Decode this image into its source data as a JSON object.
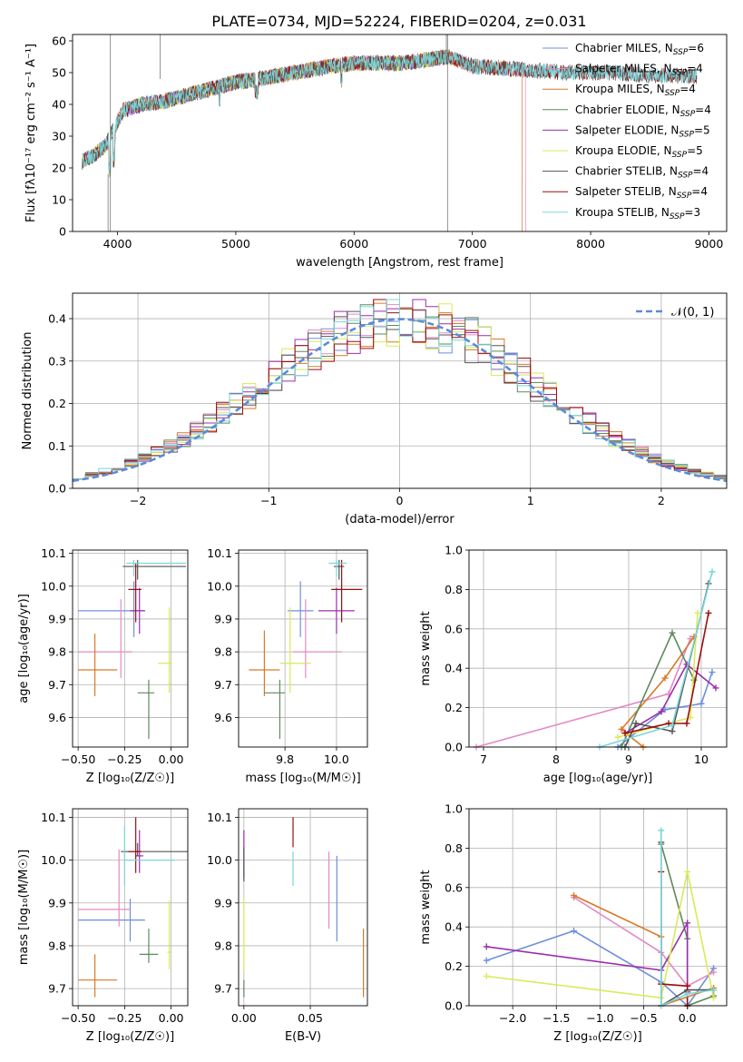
{
  "title": "PLATE=0734, MJD=52224, FIBERID=0204, z=0.031",
  "colors": [
    "#6d8fdc",
    "#e38ac4",
    "#d77a29",
    "#5e8a5b",
    "#9a2eae",
    "#d9ea56",
    "#555555",
    "#9b0e0e",
    "#7bd5d9"
  ],
  "chart_data": [
    {
      "id": "spectrum",
      "type": "line",
      "xlabel": "wavelength [Angstrom, rest frame]",
      "ylabel": "Flux [f$_\\lambda$10$^{-17}$ erg cm$^{-2}$ s$^{-1}$ A$^{-1}$]",
      "ylabel_display": "Flux [fλ10⁻¹⁷ erg cm⁻² s⁻¹ A⁻¹]",
      "xlim": [
        3620,
        9150
      ],
      "ylim": [
        0,
        62
      ],
      "xticks": [
        4000,
        5000,
        6000,
        7000,
        8000,
        9000
      ],
      "yticks": [
        0,
        10,
        20,
        30,
        40,
        50,
        60
      ],
      "legend_position": "top-right",
      "series": [
        {
          "name": "Chabrier MILES, N$_{SSP}$=6",
          "base": "Chabrier MILES, N",
          "sub": "SSP",
          "rest": "=6",
          "range": [
            3700,
            7450
          ]
        },
        {
          "name": "Salpeter MILES, N$_{SSP}$=4",
          "base": "Salpeter MILES, N",
          "sub": "SSP",
          "rest": "=4",
          "range": [
            3700,
            7450
          ]
        },
        {
          "name": "Kroupa MILES, N$_{SSP}$=4",
          "base": "Kroupa MILES, N",
          "sub": "SSP",
          "rest": "=4",
          "range": [
            3700,
            7420
          ]
        },
        {
          "name": "Chabrier ELODIE, N$_{SSP}$=4",
          "base": "Chabrier ELODIE, N",
          "sub": "SSP",
          "rest": "=4",
          "range": [
            3700,
            6800
          ]
        },
        {
          "name": "Salpeter ELODIE, N$_{SSP}$=5",
          "base": "Salpeter ELODIE, N",
          "sub": "SSP",
          "rest": "=5",
          "range": [
            3700,
            6800
          ]
        },
        {
          "name": "Kroupa ELODIE, N$_{SSP}$=5",
          "base": "Kroupa ELODIE, N",
          "sub": "SSP",
          "rest": "=5",
          "range": [
            3700,
            6800
          ]
        },
        {
          "name": "Chabrier STELIB, N$_{SSP}$=4",
          "base": "Chabrier STELIB, N",
          "sub": "SSP",
          "rest": "=4",
          "range": [
            3700,
            8900
          ]
        },
        {
          "name": "Salpeter STELIB, N$_{SSP}$=4",
          "base": "Salpeter STELIB, N",
          "sub": "SSP",
          "rest": "=4",
          "range": [
            3700,
            8900
          ]
        },
        {
          "name": "Kroupa STELIB, N$_{SSP}$=3",
          "base": "Kroupa STELIB, N",
          "sub": "SSP",
          "rest": "=3",
          "range": [
            3700,
            8900
          ]
        }
      ],
      "continuum_points": [
        [
          3700,
          22
        ],
        [
          3800,
          24
        ],
        [
          3900,
          27
        ],
        [
          3950,
          31
        ],
        [
          4050,
          38
        ],
        [
          4200,
          40
        ],
        [
          4400,
          41
        ],
        [
          4600,
          43
        ],
        [
          4800,
          45
        ],
        [
          5000,
          47
        ],
        [
          5200,
          48
        ],
        [
          5500,
          50
        ],
        [
          5800,
          52
        ],
        [
          6000,
          53
        ],
        [
          6200,
          53
        ],
        [
          6400,
          53
        ],
        [
          6600,
          54
        ],
        [
          6800,
          55
        ],
        [
          7000,
          52
        ],
        [
          7400,
          51
        ],
        [
          7800,
          50
        ],
        [
          8200,
          50
        ],
        [
          8600,
          49
        ],
        [
          8900,
          49
        ]
      ]
    },
    {
      "id": "residuals",
      "type": "histogram",
      "xlabel": "(data-model)/error",
      "ylabel": "Normed distribution",
      "xlim": [
        -2.5,
        2.5
      ],
      "ylim": [
        0,
        0.46
      ],
      "xticks": [
        -2,
        -1,
        0,
        1,
        2
      ],
      "yticks": [
        0.0,
        0.1,
        0.2,
        0.3,
        0.4
      ],
      "grid": true,
      "legend_position": "top-right",
      "reference_label": "$\\mathcal{N}(0,1)$",
      "reference_display": "𝒩(0, 1)",
      "bin_width": 0.1,
      "center_peak": 0.4
    },
    {
      "id": "age_vs_Z",
      "type": "errorbar",
      "xlabel": "Z [log$_{10}$($Z/Z_\\odot$)]",
      "xlabel_display": "Z [log₁₀(Z/Z☉)]",
      "ylabel": "age  [log$_{10}$($age/yr$)]",
      "ylabel_display": "age  [log₁₀(age/yr)]",
      "xlim": [
        -0.53,
        0.09
      ],
      "ylim": [
        9.51,
        10.11
      ],
      "xticks": [
        -0.5,
        -0.25,
        0.0
      ],
      "yticks": [
        9.6,
        9.7,
        9.8,
        9.9,
        10.0,
        10.1
      ],
      "grid": true,
      "points": [
        {
          "x": -0.2,
          "y": 9.925,
          "xerr": [
            0.3,
            0.06
          ],
          "yerr": [
            0.08,
            0.09
          ]
        },
        {
          "x": -0.27,
          "y": 9.8,
          "xerr": [
            0.23,
            0.06
          ],
          "yerr": [
            0.08,
            0.16
          ]
        },
        {
          "x": -0.41,
          "y": 9.745,
          "xerr": [
            0.09,
            0.12
          ],
          "yerr": [
            0.08,
            0.11
          ]
        },
        {
          "x": -0.12,
          "y": 9.675,
          "xerr": [
            0.06,
            0.03
          ],
          "yerr": [
            0.14,
            0.04
          ]
        },
        {
          "x": -0.17,
          "y": 9.925,
          "xerr": [
            0.05,
            0.03
          ],
          "yerr": [
            0.07,
            0.07
          ]
        },
        {
          "x": -0.01,
          "y": 9.765,
          "xerr": [
            0.06,
            0.01
          ],
          "yerr": [
            0.09,
            0.17
          ]
        },
        {
          "x": -0.18,
          "y": 10.06,
          "xerr": [
            0.08,
            0.26
          ],
          "yerr": [
            0.04,
            0.02
          ]
        },
        {
          "x": -0.19,
          "y": 9.99,
          "xerr": [
            0.04,
            0.03
          ],
          "yerr": [
            0.1,
            0.08
          ]
        },
        {
          "x": -0.2,
          "y": 10.07,
          "xerr": [
            0.04,
            0.28
          ],
          "yerr": [
            0.04,
            0.01
          ]
        }
      ]
    },
    {
      "id": "age_vs_mass",
      "type": "errorbar",
      "xlabel": "mass [log$_{10}$($M/M_\\odot$)]",
      "xlabel_display": "mass [log₁₀(M/M☉)]",
      "xlim": [
        9.62,
        10.12
      ],
      "ylim": [
        9.51,
        10.11
      ],
      "xticks": [
        9.8,
        10.0
      ],
      "yticks": [
        9.6,
        9.7,
        9.8,
        9.9,
        10.0,
        10.1
      ],
      "grid": true,
      "points": [
        {
          "x": 9.86,
          "y": 9.925,
          "xerr": [
            0.05,
            0.05
          ],
          "yerr": [
            0.08,
            0.09
          ]
        },
        {
          "x": 9.88,
          "y": 9.8,
          "xerr": [
            0.05,
            0.14
          ],
          "yerr": [
            0.08,
            0.16
          ]
        },
        {
          "x": 9.72,
          "y": 9.745,
          "xerr": [
            0.06,
            0.06
          ],
          "yerr": [
            0.08,
            0.12
          ]
        },
        {
          "x": 9.78,
          "y": 9.675,
          "xerr": [
            0.06,
            0.02
          ],
          "yerr": [
            0.14,
            0.04
          ]
        },
        {
          "x": 10.0,
          "y": 9.925,
          "xerr": [
            0.07,
            0.07
          ],
          "yerr": [
            0.07,
            0.07
          ]
        },
        {
          "x": 9.82,
          "y": 9.765,
          "xerr": [
            0.04,
            0.08
          ],
          "yerr": [
            0.09,
            0.17
          ]
        },
        {
          "x": 10.01,
          "y": 10.06,
          "xerr": [
            0.02,
            0.02
          ],
          "yerr": [
            0.04,
            0.02
          ]
        },
        {
          "x": 10.02,
          "y": 9.99,
          "xerr": [
            0.04,
            0.08
          ],
          "yerr": [
            0.1,
            0.09
          ]
        },
        {
          "x": 10.0,
          "y": 10.07,
          "xerr": [
            0.03,
            0.04
          ],
          "yerr": [
            0.04,
            0.01
          ]
        }
      ]
    },
    {
      "id": "weight_vs_age",
      "type": "line",
      "xlabel": "age  [log$_{10}$($age/yr$)]",
      "xlabel_display": "age  [log₁₀(age/yr)]",
      "ylabel": "mass weight",
      "xlim": [
        6.8,
        10.35
      ],
      "ylim": [
        0,
        1
      ],
      "xticks": [
        7,
        8,
        9,
        10
      ],
      "yticks": [
        0.0,
        0.2,
        0.4,
        0.6,
        0.8,
        1.0
      ],
      "grid": true,
      "series": [
        [
          [
            8.85,
            0.0
          ],
          [
            9.5,
            0.19
          ],
          [
            10.0,
            0.22
          ],
          [
            10.15,
            0.38
          ]
        ],
        [
          [
            6.9,
            0.0
          ],
          [
            9.55,
            0.27
          ],
          [
            9.85,
            0.55
          ]
        ],
        [
          [
            9.2,
            0.0
          ],
          [
            8.9,
            0.09
          ],
          [
            9.5,
            0.35
          ],
          [
            9.9,
            0.56
          ]
        ],
        [
          [
            8.9,
            0.0
          ],
          [
            9.6,
            0.58
          ],
          [
            9.9,
            0.34
          ]
        ],
        [
          [
            8.95,
            0.07
          ],
          [
            9.45,
            0.18
          ],
          [
            9.8,
            0.42
          ],
          [
            10.2,
            0.3
          ]
        ],
        [
          [
            8.85,
            0.05
          ],
          [
            9.85,
            0.15
          ],
          [
            9.95,
            0.68
          ]
        ],
        [
          [
            8.95,
            0.0
          ],
          [
            9.1,
            0.12
          ],
          [
            9.6,
            0.08
          ],
          [
            10.1,
            0.83
          ]
        ],
        [
          [
            8.95,
            0.07
          ],
          [
            9.55,
            0.12
          ],
          [
            9.8,
            0.12
          ],
          [
            10.1,
            0.68
          ]
        ],
        [
          [
            8.6,
            0.0
          ],
          [
            9.6,
            0.11
          ],
          [
            10.15,
            0.89
          ]
        ]
      ]
    },
    {
      "id": "mass_vs_Z",
      "type": "errorbar",
      "xlabel": "Z [log$_{10}$($Z/Z_\\odot$)]",
      "xlabel_display": "Z [log₁₀(Z/Z☉)]",
      "ylabel": "mass [log$_{10}$($M/M_\\odot$)]",
      "ylabel_display": "mass [log₁₀(M/M☉)]",
      "xlim": [
        -0.53,
        0.09
      ],
      "ylim": [
        9.66,
        10.12
      ],
      "xticks": [
        -0.5,
        -0.25,
        0.0
      ],
      "yticks": [
        9.7,
        9.8,
        9.9,
        10.0,
        10.1
      ],
      "grid": true,
      "points": [
        {
          "x": -0.22,
          "y": 9.86,
          "xerr": [
            0.28,
            0.08
          ],
          "yerr": [
            0.05,
            0.05
          ]
        },
        {
          "x": -0.28,
          "y": 9.885,
          "xerr": [
            0.22,
            0.06
          ],
          "yerr": [
            0.04,
            0.14
          ]
        },
        {
          "x": -0.41,
          "y": 9.72,
          "xerr": [
            0.09,
            0.12
          ],
          "yerr": [
            0.04,
            0.06
          ]
        },
        {
          "x": -0.12,
          "y": 9.78,
          "xerr": [
            0.05,
            0.05
          ],
          "yerr": [
            0.02,
            0.06
          ]
        },
        {
          "x": -0.17,
          "y": 10.01,
          "xerr": [
            0.02,
            0.02
          ],
          "yerr": [
            0.04,
            0.06
          ]
        },
        {
          "x": -0.01,
          "y": 9.785,
          "xerr": [
            0.01,
            0.01
          ],
          "yerr": [
            0.04,
            0.12
          ]
        },
        {
          "x": -0.18,
          "y": 10.02,
          "xerr": [
            0.09,
            0.27
          ],
          "yerr": [
            0.01,
            0.02
          ]
        },
        {
          "x": -0.19,
          "y": 10.02,
          "xerr": [
            0.04,
            0.03
          ],
          "yerr": [
            0.05,
            0.08
          ]
        },
        {
          "x": -0.25,
          "y": 10.0,
          "xerr": [
            0.0,
            0.27
          ],
          "yerr": [
            0.06,
            0.08
          ]
        }
      ]
    },
    {
      "id": "mass_vs_EBV",
      "type": "errorbar",
      "xlabel": "E(B-V)",
      "xlim": [
        -0.004,
        0.093
      ],
      "ylim": [
        9.66,
        10.12
      ],
      "xticks": [
        0.0,
        0.05
      ],
      "yticks": [
        9.7,
        9.8,
        9.9,
        10.0,
        10.1
      ],
      "grid": true,
      "points": [
        {
          "x": 0.07,
          "y": 9.91,
          "xerr": [
            0,
            0
          ],
          "yerr": [
            0.1,
            0.1
          ]
        },
        {
          "x": 0.064,
          "y": 9.94,
          "xerr": [
            0,
            0
          ],
          "yerr": [
            0.1,
            0.08
          ]
        },
        {
          "x": 0.09,
          "y": 9.76,
          "xerr": [
            0,
            0
          ],
          "yerr": [
            0.08,
            0.08
          ]
        },
        {
          "x": 0.0,
          "y": 9.7,
          "xerr": [
            0,
            0
          ],
          "yerr": [
            0.02,
            0.02
          ]
        },
        {
          "x": 0.0,
          "y": 10.02,
          "xerr": [
            0,
            0
          ],
          "yerr": [
            0.06,
            0.05
          ]
        },
        {
          "x": 0.0,
          "y": 9.82,
          "xerr": [
            0,
            0
          ],
          "yerr": [
            0.08,
            0.09
          ]
        },
        {
          "x": 0.0,
          "y": 10.0,
          "xerr": [
            0,
            0
          ],
          "yerr": [
            0.05,
            0.03
          ]
        },
        {
          "x": 0.037,
          "y": 10.07,
          "xerr": [
            0,
            0
          ],
          "yerr": [
            0.04,
            0.03
          ]
        },
        {
          "x": 0.037,
          "y": 9.98,
          "xerr": [
            0,
            0
          ],
          "yerr": [
            0.04,
            0.04
          ]
        }
      ]
    },
    {
      "id": "weight_vs_Z",
      "type": "line",
      "xlabel": "Z [log$_{10}$($Z/Z_\\odot$)]",
      "xlabel_display": "Z [log₁₀(Z/Z☉)]",
      "ylabel": "mass weight",
      "xlim": [
        -2.5,
        0.45
      ],
      "ylim": [
        0,
        1
      ],
      "xticks": [
        -2.0,
        -1.5,
        -1.0,
        -0.5,
        0.0
      ],
      "yticks": [
        0.0,
        0.2,
        0.4,
        0.6,
        0.8,
        1.0
      ],
      "grid": true,
      "series": [
        [
          [
            -2.3,
            0.23
          ],
          [
            -1.3,
            0.38
          ],
          [
            -0.3,
            0.12
          ],
          [
            0.0,
            0.0
          ],
          [
            0.3,
            0.19
          ]
        ],
        [
          [
            -1.3,
            0.55
          ],
          [
            -0.3,
            0.27
          ],
          [
            0.0,
            0.1
          ],
          [
            0.3,
            0.17
          ]
        ],
        [
          [
            -1.3,
            0.56
          ],
          [
            -0.3,
            0.35
          ],
          [
            -0.3,
            0.0
          ],
          [
            0.3,
            0.09
          ]
        ],
        [
          [
            -0.3,
            0.82
          ],
          [
            0.0,
            0.34
          ],
          [
            0.0,
            0.0
          ],
          [
            0.3,
            0.05
          ]
        ],
        [
          [
            -2.3,
            0.3
          ],
          [
            -0.3,
            0.18
          ],
          [
            0.0,
            0.42
          ],
          [
            0.0,
            0.07
          ]
        ],
        [
          [
            -2.3,
            0.15
          ],
          [
            -0.3,
            0.04
          ],
          [
            0.0,
            0.68
          ],
          [
            0.3,
            0.04
          ]
        ],
        [
          [
            -0.3,
            0.83
          ],
          [
            -0.3,
            0.0
          ],
          [
            0.0,
            0.08
          ],
          [
            0.3,
            0.08
          ]
        ],
        [
          [
            -0.3,
            0.68
          ],
          [
            -0.3,
            0.11
          ],
          [
            0.0,
            0.1
          ],
          [
            0.0,
            0.0
          ]
        ],
        [
          [
            -0.3,
            0.89
          ],
          [
            -0.3,
            0.0
          ],
          [
            0.0,
            0.06
          ],
          [
            0.3,
            0.08
          ]
        ]
      ]
    }
  ]
}
